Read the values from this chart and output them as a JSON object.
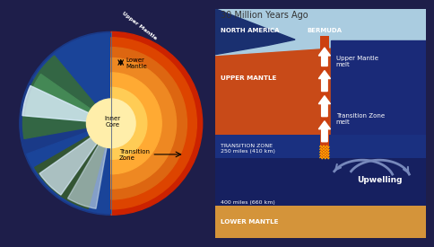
{
  "bg_color": "#1e1e4a",
  "title": "30 Million Years Ago",
  "title_fontsize": 7.0,
  "title_color": "#333333",
  "ocean_color": "#aacce0",
  "upper_mantle_color": "#c84a18",
  "transition_zone_color": "#1a3080",
  "lower_mantle_color": "#d4943a",
  "deep_blue_color": "#162060",
  "mid_blue_color": "#1e2e80",
  "north_america_label": "NORTH AMERICA",
  "bermuda_label": "BERMUDA",
  "upper_mantle_label": "UPPER MANTLE",
  "transition_zone_label": "TRANSITION ZONE\n250 miles (410 km)",
  "lower_mantle_label": "LOWER MANTLE",
  "depth_label": "400 miles (660 km)",
  "upwelling_label": "Upwelling",
  "upper_mantle_melt_label": "Upper Mantle\nmelt",
  "transition_zone_melt_label": "Transition Zone\nmelt",
  "upper_mantle_curved_label": "Upper Mantle",
  "arrow_orange": "#cc4010",
  "arrow_white": "#ffffff",
  "upwelling_arrow_color": "#7788bb",
  "earth_outer_red": "#cc2200",
  "earth_inner_orange1": "#dd5511",
  "earth_inner_orange2": "#ee8822",
  "earth_inner_yellow": "#ffbb33",
  "earth_core": "#ffee99",
  "earth_left_blue": "#1a3a88",
  "earth_left_ocean": "#2244aa",
  "earth_cloud1": "#ccddee",
  "earth_cloud2": "#ddeeff"
}
